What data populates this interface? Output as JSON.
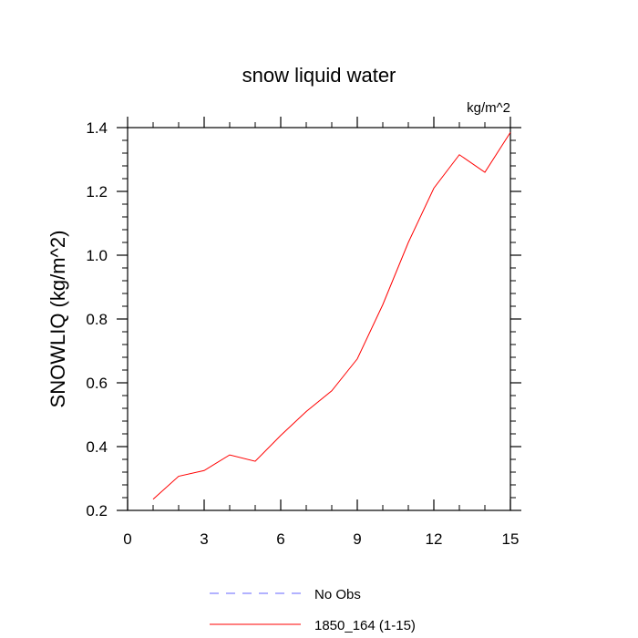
{
  "chart_data": {
    "type": "line",
    "title": "snow liquid water",
    "units_label": "kg/m^2",
    "ylabel": "SNOWLIQ  (kg/m^2)",
    "xlabel": "",
    "xlim": [
      0,
      15
    ],
    "ylim": [
      0.2,
      1.4
    ],
    "x_ticks": [
      0,
      3,
      6,
      9,
      12,
      15
    ],
    "y_ticks": [
      0.2,
      0.4,
      0.6,
      0.8,
      1.0,
      1.2,
      1.4
    ],
    "y_tick_labels": [
      "0.2",
      "0.4",
      "0.6",
      "0.8",
      "1.0",
      "1.2",
      "1.4"
    ],
    "grid": false,
    "legend_position": "bottom",
    "series": [
      {
        "name": "1850_164 (1-15)",
        "color": "#ff0000",
        "style": "solid",
        "x": [
          1,
          2,
          3,
          4,
          5,
          6,
          7,
          8,
          9,
          10,
          11,
          12,
          13,
          14,
          15
        ],
        "y": [
          0.235,
          0.307,
          0.325,
          0.374,
          0.354,
          0.435,
          0.51,
          0.575,
          0.675,
          0.845,
          1.04,
          1.21,
          1.315,
          1.26,
          1.385
        ]
      }
    ],
    "legend": [
      {
        "label": "No Obs",
        "color": "#6666ff",
        "style": "dashed"
      },
      {
        "label": "1850_164 (1-15)",
        "color": "#ff0000",
        "style": "solid"
      }
    ]
  }
}
